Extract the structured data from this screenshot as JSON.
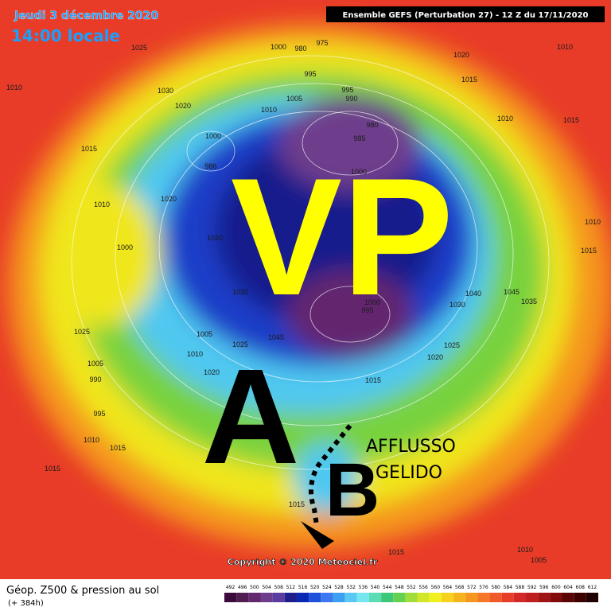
{
  "header": {
    "date": "Jeudi 3 décembre 2020",
    "time": "14:00 locale",
    "model": "Ensemble GEFS  (Perturbation 27)  -  12 Z du 17/11/2020"
  },
  "annotations": {
    "vortex": "VP",
    "high": "A",
    "low": "B",
    "flow_line1": "AFFLUSSO",
    "flow_line2": "GELIDO"
  },
  "pressure_labels": [
    1010,
    1025,
    1030,
    1020,
    1000,
    980,
    975,
    995,
    1005,
    1010,
    995,
    990,
    980,
    985,
    1020,
    1015,
    1010,
    1010,
    1015,
    1015,
    1000,
    986,
    1000,
    1010,
    1020,
    1020,
    1000,
    1020,
    1000,
    995,
    1030,
    1040,
    1045,
    1035,
    1010,
    1015,
    1025,
    1010,
    1025,
    1045,
    1005,
    1025,
    1020,
    1015,
    1005,
    990,
    995,
    1010,
    1015,
    1015,
    1020,
    1015,
    1015,
    1010,
    1005
  ],
  "copyright": "Copyright © 2020 Meteociel.fr",
  "footer": {
    "title": "Géop. Z500 & pression au sol",
    "lead": "(+ 384h)"
  },
  "scale": {
    "values": [
      492,
      496,
      500,
      504,
      508,
      512,
      516,
      520,
      524,
      528,
      532,
      536,
      540,
      544,
      548,
      552,
      556,
      560,
      564,
      568,
      572,
      576,
      580,
      584,
      588,
      592,
      596,
      600,
      604,
      608,
      612
    ],
    "colors": [
      "#3c0a3c",
      "#501e50",
      "#64286e",
      "#6e3c8c",
      "#5a3ca0",
      "#1e1e8c",
      "#0a28b4",
      "#1e50dc",
      "#3c78f0",
      "#3ca0f0",
      "#5ac8f5",
      "#78e6f0",
      "#5adcb4",
      "#3cc878",
      "#64d250",
      "#a0dc3c",
      "#d2e628",
      "#f0f01e",
      "#f5d21e",
      "#f5b41e",
      "#f5961e",
      "#f57828",
      "#f05a28",
      "#e63c28",
      "#d22828",
      "#be1e1e",
      "#a01414",
      "#820a0a",
      "#5a0505",
      "#3c0000",
      "#1e0000"
    ]
  }
}
